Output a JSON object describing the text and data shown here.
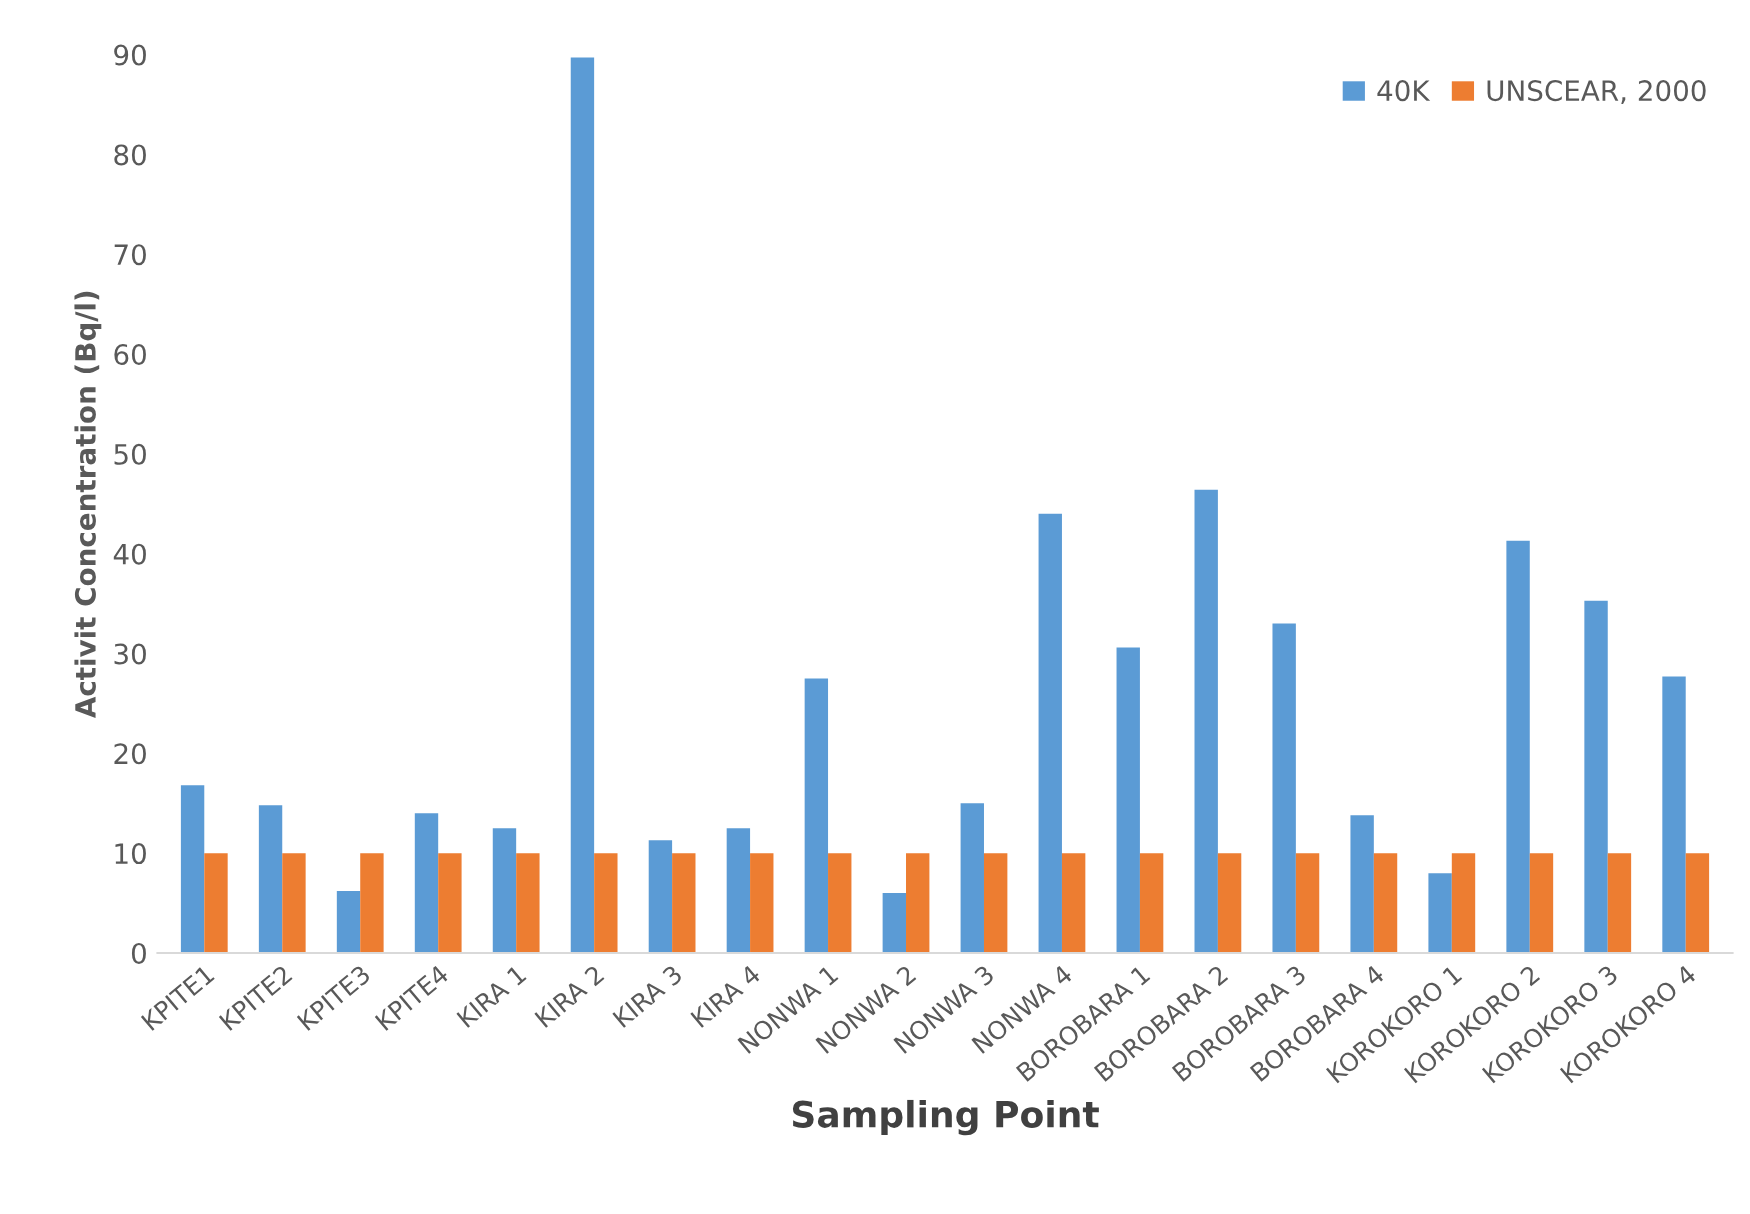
{
  "chart_data": {
    "type": "bar",
    "xlabel": "Sampling Point",
    "ylabel": "Activit Concentration (Bq/l)",
    "categories": [
      "KPITE1",
      "KPITE2",
      "KPITE3",
      "KPITE4",
      "KIRA 1",
      "KIRA 2",
      "KIRA 3",
      "KIRA 4",
      "NONWA 1",
      "NONWA 2",
      "NONWA 3",
      "NONWA 4",
      "BOROBARA 1",
      "BOROBARA 2",
      "BOROBARA 3",
      "BOROBARA 4",
      "KOROKORO 1",
      "KOROKORO 2",
      "KOROKORO 3",
      "KOROKORO 4"
    ],
    "series": [
      {
        "name": "40K",
        "color": "#5b9bd5",
        "values": [
          16.8,
          14.8,
          6.2,
          14,
          12.5,
          89.7,
          11.3,
          12.5,
          27.5,
          6,
          15,
          44,
          30.6,
          46.4,
          33,
          13.8,
          8,
          41.3,
          35.3,
          27.7
        ]
      },
      {
        "name": "UNSCEAR, 2000",
        "color": "#ed7d31",
        "values": [
          10,
          10,
          10,
          10,
          10,
          10,
          10,
          10,
          10,
          10,
          10,
          10,
          10,
          10,
          10,
          10,
          10,
          10,
          10,
          10
        ]
      }
    ],
    "ylim": [
      0,
      90
    ],
    "yticks": [
      0,
      10,
      20,
      30,
      40,
      50,
      60,
      70,
      80,
      90
    ],
    "grid": false,
    "legend": "top right"
  }
}
